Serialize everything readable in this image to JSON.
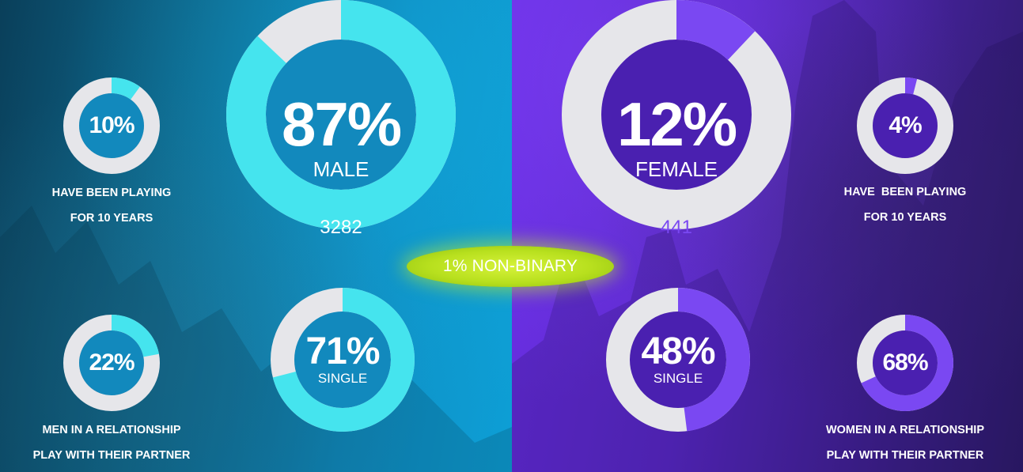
{
  "colors": {
    "male_accent": "#45e4ee",
    "female_accent": "#7a48f2",
    "ring_track": "#e6e6ea",
    "male_inner": "#1289bd",
    "female_inner": "#4a20b0",
    "nonbinary_badge": "#c6ec2a"
  },
  "chart_data": [
    {
      "type": "pie",
      "variant": "donut",
      "value": 87,
      "label": "87%",
      "sublabel": "MALE",
      "count": "3282"
    },
    {
      "type": "pie",
      "variant": "donut",
      "value": 12,
      "label": "12%",
      "sublabel": "FEMALE",
      "count": "441"
    },
    {
      "type": "pie",
      "variant": "donut",
      "value": 10,
      "label": "10%",
      "caption": [
        "HAVE BEEN PLAYING",
        "FOR 10 YEARS"
      ]
    },
    {
      "type": "pie",
      "variant": "donut",
      "value": 4,
      "label": "4%",
      "caption": [
        "HAVE  BEEN PLAYING",
        "FOR 10 YEARS"
      ]
    },
    {
      "type": "pie",
      "variant": "donut",
      "value": 22,
      "label": "22%",
      "caption": [
        "MEN IN A RELATIONSHIP",
        "PLAY WITH THEIR PARTNER"
      ]
    },
    {
      "type": "pie",
      "variant": "donut",
      "value": 71,
      "label": "71%",
      "sublabel": "SINGLE"
    },
    {
      "type": "pie",
      "variant": "donut",
      "value": 48,
      "label": "48%",
      "sublabel": "SINGLE"
    },
    {
      "type": "pie",
      "variant": "donut",
      "value": 68,
      "label": "68%",
      "caption": [
        "WOMEN IN A RELATIONSHIP",
        "PLAY WITH THEIR PARTNER"
      ]
    }
  ],
  "nonbinary": {
    "label": "1% NON-BINARY"
  }
}
